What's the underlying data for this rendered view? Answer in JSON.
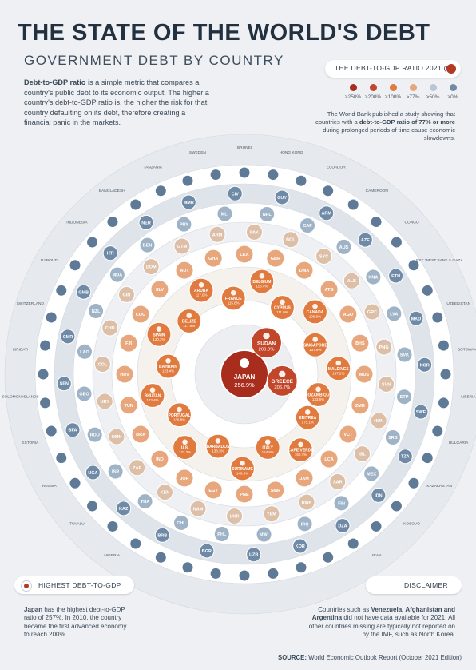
{
  "header": {
    "title": "THE STATE OF THE WORLD'S DEBT",
    "subtitle": "GOVERNMENT DEBT BY COUNTRY"
  },
  "intro": {
    "term": "Debt-to-GDP ratio",
    "text": " is a simple metric that compares a country's public debt to its economic output. The higher a country's debt-to-GDP ratio is, the higher the risk for that country defaulting on its debt, therefore creating a financial panic in the markets."
  },
  "legend": {
    "title": "THE DEBT-TO-GDP RATIO 2021 (%)",
    "items": [
      {
        "label": ">250%",
        "color": "#a82d1d"
      },
      {
        "label": ">200%",
        "color": "#c2462a"
      },
      {
        "label": ">100%",
        "color": "#e07a3e"
      },
      {
        "label": ">77%",
        "color": "#e8a67c"
      },
      {
        "label": ">50%",
        "color": "#b9c6d3"
      },
      {
        "label": ">0%",
        "color": "#6f8aa6"
      }
    ]
  },
  "side_note": {
    "pre": "The World Bank published a study showing that countries with a ",
    "bold": "debt-to-GDP ratio of 77% or more",
    "post": " during prolonged periods of time cause economic slowdowns."
  },
  "highlight": {
    "label": "HIGHEST DEBT-TO-GDP",
    "bold": "Japan",
    "text": " has the highest debt-to-GDP ratio of 257%. In 2010, the country became the first advanced economy to reach 200%."
  },
  "disclaimer": {
    "label": "DISCLAIMER",
    "pre": "Countries such as ",
    "bold": "Venezuela, Afghanistan and Argentina",
    "post": " did not have data available for 2021. All other countries missing are typically not reported on by the IMF, such as North Korea."
  },
  "source": {
    "label": "SOURCE:",
    "text": " World Economic Outlook Report (October 2021 Edition)"
  },
  "chart_data": {
    "type": "bubble-rings",
    "title": "GOVERNMENT DEBT BY COUNTRY",
    "unit": "%",
    "rings": [
      {
        "tier": ">250%",
        "color": "#a82d1d",
        "countries": [
          {
            "name": "JAPAN",
            "value": "256.9%"
          }
        ]
      },
      {
        "tier": ">200%",
        "color": "#c2462a",
        "countries": [
          {
            "name": "SUDAN",
            "value": "209.9%"
          },
          {
            "name": "GREECE",
            "value": "206.7%"
          }
        ]
      },
      {
        "tier": ">100%",
        "color": "#e07a3e",
        "countries": [
          {
            "name": "ERITREA",
            "value": "175.1%"
          },
          {
            "name": "CAPE VERDE",
            "value": "160.7%"
          },
          {
            "name": "ITALY",
            "value": "154.8%"
          },
          {
            "name": "SURINAME",
            "value": "140.6%"
          },
          {
            "name": "BARBADOS",
            "value": "138.3%"
          },
          {
            "name": "U.S.",
            "value": "133.3%"
          },
          {
            "name": "PORTUGAL",
            "value": "130.8%"
          },
          {
            "name": "BHUTAN",
            "value": "123.4%"
          },
          {
            "name": "BAHRAIN",
            "value": "123.4%"
          },
          {
            "name": "SPAIN",
            "value": "120.2%"
          },
          {
            "name": "BELIZE",
            "value": "117.9%"
          },
          {
            "name": "ARUBA",
            "value": "117.0%"
          },
          {
            "name": "FRANCE",
            "value": "115.8%"
          },
          {
            "name": "BELGIUM",
            "value": "113.4%"
          },
          {
            "name": "CYPRUS",
            "value": "111.0%"
          },
          {
            "name": "CANADA",
            "value": "109.9%"
          },
          {
            "name": "SINGAPORE",
            "value": "137.9%"
          },
          {
            "name": "MALDIVES",
            "value": "137.2%"
          },
          {
            "name": "MOZAMBIQUE",
            "value": "133.6%"
          }
        ]
      }
    ]
  },
  "ring_codes": {
    "ring4": [
      "LKA",
      "GBR",
      "DMA",
      "ATG",
      "AGO",
      "BHS",
      "MUS",
      "ZMB",
      "VCT",
      "LCA",
      "JAM",
      "SMR",
      "PNE",
      "EGY",
      "JOR",
      "IND",
      "BRA",
      "TUN",
      "HRV",
      "FJI",
      "COG",
      "SLV",
      "AUT",
      "GHA"
    ],
    "ring5": [
      "PAK",
      "BOL",
      "SYC",
      "ALB",
      "GRC",
      "PNG",
      "SVN",
      "HUN",
      "ISL",
      "SAR",
      "RWA",
      "YEM",
      "UKR",
      "NAM",
      "KEN",
      "ZAF",
      "OMN",
      "URY",
      "COL",
      "CHN",
      "GIN",
      "DOM",
      "GTM",
      "ARM"
    ],
    "ring6": [
      "NPL",
      "CAF",
      "AUS",
      "KNA",
      "LVA",
      "SVK",
      "STP",
      "SRB",
      "MEX",
      "FIN",
      "IRQ",
      "MWI",
      "PHL",
      "CHL",
      "THA",
      "ISR",
      "ROU",
      "GEO",
      "LAO",
      "NZL",
      "MDA",
      "BEN",
      "PRY",
      "MLI"
    ],
    "ring7": [
      "GUY",
      "ARM",
      "AZE",
      "ETH",
      "MKD",
      "NOR",
      "SWE",
      "TZA",
      "IDN",
      "DZA",
      "KOR",
      "UZB",
      "BGR",
      "BRB",
      "KAZ",
      "UGA",
      "BFA",
      "SEN",
      "CMR",
      "GMB",
      "HTI",
      "NER",
      "MMR",
      "CIV"
    ],
    "outer": [
      "BRUNEI",
      "HONG KONG",
      "ECUADOR",
      "CAMEROON",
      "CONGO",
      "EST. WEST BANK & GAZA",
      "UZBEKISTAN",
      "BOTSWANA",
      "LIBERIA",
      "BULGARIA",
      "KAZAKHSTAN",
      "KOSOVO",
      "IRAN",
      "TURKMENISTAN",
      "DENMARK",
      "CHILE",
      "PERU",
      "SAUDI ARABIA",
      "NIGERIA",
      "TUVALU",
      "RUSSIA",
      "ESTONIA",
      "SOLOMON ISLANDS",
      "KIRIBATI",
      "SWITZERLAND",
      "DJIBOUTI",
      "INDONESIA",
      "BANGLADESH",
      "TANZANIA",
      "SWEDEN"
    ]
  }
}
